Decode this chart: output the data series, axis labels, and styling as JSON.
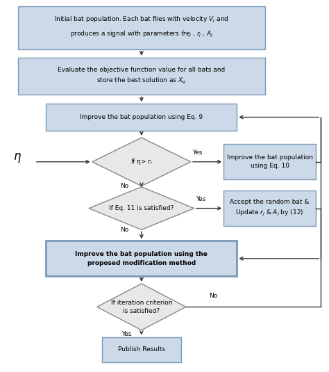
{
  "bg_color": "#ffffff",
  "box_fill": "#ccd9e8",
  "box_edge": "#7a9ab8",
  "diamond_fill": "#e8e8e8",
  "diamond_edge": "#888888",
  "arrow_color": "#333333",
  "text_color": "#000000",
  "box1_text1": "Initial bat population. Each bat flies with velocity ",
  "box1_text2": " and",
  "box1_text3": "produces a signal with parameters ",
  "box1_Vj": "V_j",
  "box1_params": "fre_j ,\\ r_j ,\\ A_j",
  "box2_text": "Evaluate the objective function value for all bats and\nstore the best solution as $X_g$",
  "box3_text": "Improve the bat population using Eq. 9",
  "diamond1_text": "If η> $r_i$",
  "box4_text": "Improve the bat population\nusing Eq. 10",
  "diamond2_text": "If Eq. 11 is satisfied?",
  "box5_text": "Accept the random bat &\nUpdate $r_j$ & $A_j$ by (12)",
  "bold_box_text": "Improve the bat population using the\nproposed modification method",
  "diamond3_text": "If iteration criterion\nis satisfied?",
  "box6_text": "Publish Results",
  "eta_label": "η",
  "yes_label": "Yes",
  "no_label": "No",
  "figsize": [
    4.74,
    5.35
  ],
  "dpi": 100
}
